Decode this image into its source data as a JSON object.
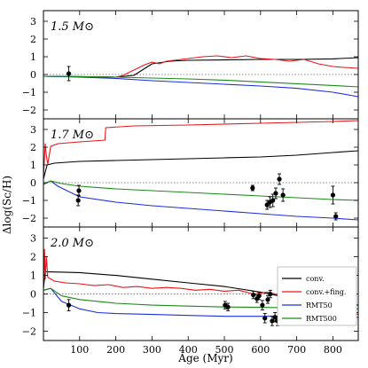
{
  "figure": {
    "ylabel": "Δlog(Sc/H)",
    "xlabel": "Age (Myr)",
    "legend": [
      "conv.",
      "conv.+fing.",
      "RMT50",
      "RMT500"
    ],
    "colors": {
      "conv.": "#000000",
      "conv.+fing.": "#e8161b",
      "RMT50": "#1d2ee0",
      "RMT500": "#1a8a1a",
      "obs": "#000000",
      "zero_line": "#666666"
    }
  },
  "chart_data": [
    {
      "type": "line",
      "panel_label": "1.5 M⊙",
      "xlim": [
        0,
        870
      ],
      "ylim": [
        -2.5,
        3.6
      ],
      "xticks": [
        100,
        200,
        300,
        400,
        500,
        600,
        700,
        800
      ],
      "yticks": [
        -2,
        -1,
        0,
        1,
        2,
        3
      ],
      "series": [
        {
          "name": "conv.",
          "x": [
            0,
            100,
            200,
            250,
            300,
            350,
            400,
            500,
            600,
            700,
            800,
            870
          ],
          "y": [
            -0.1,
            -0.12,
            -0.15,
            -0.05,
            0.6,
            0.75,
            0.8,
            0.82,
            0.85,
            0.85,
            0.88,
            0.95
          ]
        },
        {
          "name": "conv.+fing.",
          "x": [
            0,
            100,
            200,
            220,
            240,
            260,
            280,
            300,
            320,
            340,
            360,
            380,
            400,
            440,
            480,
            520,
            560,
            600,
            640,
            680,
            720,
            760,
            800,
            830,
            870
          ],
          "y": [
            -0.1,
            -0.12,
            -0.15,
            -0.05,
            0.15,
            0.35,
            0.55,
            0.7,
            0.6,
            0.75,
            0.8,
            0.85,
            0.9,
            1.0,
            1.05,
            0.95,
            1.05,
            0.9,
            0.85,
            0.75,
            0.85,
            0.6,
            0.45,
            0.4,
            0.35
          ]
        },
        {
          "name": "RMT50",
          "x": [
            0,
            100,
            200,
            300,
            400,
            500,
            600,
            700,
            800,
            870
          ],
          "y": [
            -0.1,
            -0.15,
            -0.22,
            -0.35,
            -0.45,
            -0.55,
            -0.65,
            -0.78,
            -1.0,
            -1.25
          ]
        },
        {
          "name": "RMT500",
          "x": [
            0,
            100,
            200,
            300,
            400,
            500,
            600,
            700,
            800,
            870
          ],
          "y": [
            -0.1,
            -0.12,
            -0.15,
            -0.2,
            -0.25,
            -0.32,
            -0.42,
            -0.52,
            -0.62,
            -0.7
          ]
        }
      ],
      "points": [
        {
          "x": 70,
          "y": 0.05,
          "yerr": 0.4
        }
      ]
    },
    {
      "type": "line",
      "panel_label": "1.7 M⊙",
      "xlim": [
        0,
        870
      ],
      "ylim": [
        -2.5,
        3.6
      ],
      "xticks": [
        100,
        200,
        300,
        400,
        500,
        600,
        700,
        800
      ],
      "yticks": [
        -2,
        -1,
        0,
        1,
        2,
        3
      ],
      "series": [
        {
          "name": "conv.",
          "x": [
            0,
            10,
            30,
            100,
            200,
            300,
            400,
            500,
            600,
            700,
            800,
            870
          ],
          "y": [
            0.2,
            1.0,
            1.1,
            1.2,
            1.25,
            1.3,
            1.35,
            1.4,
            1.45,
            1.55,
            1.7,
            1.8
          ]
        },
        {
          "name": "conv.+fing.",
          "x": [
            0,
            5,
            8,
            12,
            20,
            40,
            100,
            170,
            172,
            250,
            400,
            600,
            800,
            870
          ],
          "y": [
            0.3,
            2.2,
            1.5,
            1.05,
            2.05,
            2.2,
            2.3,
            2.4,
            3.1,
            3.2,
            3.25,
            3.35,
            3.45,
            3.5
          ]
        },
        {
          "name": "RMT50",
          "x": [
            0,
            20,
            40,
            100,
            200,
            300,
            400,
            500,
            600,
            700,
            800,
            870
          ],
          "y": [
            -0.1,
            0.1,
            -0.2,
            -0.8,
            -1.1,
            -1.3,
            -1.45,
            -1.6,
            -1.75,
            -1.9,
            -2.0,
            -2.1
          ]
        },
        {
          "name": "RMT500",
          "x": [
            0,
            20,
            50,
            100,
            200,
            300,
            400,
            500,
            600,
            700,
            800,
            870
          ],
          "y": [
            -0.1,
            0.1,
            -0.05,
            -0.2,
            -0.35,
            -0.45,
            -0.55,
            -0.65,
            -0.75,
            -0.85,
            -0.95,
            -1.0
          ]
        }
      ],
      "points": [
        {
          "x": 96,
          "y": -1.0,
          "yerr": 0.3
        },
        {
          "x": 98,
          "y": -0.45,
          "yerr": 0.3
        },
        {
          "x": 578,
          "y": -0.3,
          "yerr": 0.15
        },
        {
          "x": 618,
          "y": -1.25,
          "yerr": 0.25
        },
        {
          "x": 626,
          "y": -1.1,
          "yerr": 0.3
        },
        {
          "x": 634,
          "y": -1.0,
          "yerr": 0.35
        },
        {
          "x": 642,
          "y": -0.6,
          "yerr": 0.3
        },
        {
          "x": 652,
          "y": 0.2,
          "yerr": 0.3
        },
        {
          "x": 662,
          "y": -0.7,
          "yerr": 0.35
        },
        {
          "x": 800,
          "y": -0.7,
          "yerr": 0.5
        },
        {
          "x": 808,
          "y": -1.9,
          "yerr": 0.2
        }
      ]
    },
    {
      "type": "line",
      "panel_label": "2.0 M⊙",
      "xlim": [
        0,
        870
      ],
      "ylim": [
        -2.5,
        3.6
      ],
      "xticks": [
        100,
        200,
        300,
        400,
        500,
        600,
        700,
        800
      ],
      "yticks": [
        -2,
        -1,
        0,
        1,
        2,
        3
      ],
      "series": [
        {
          "name": "conv.",
          "x": [
            0,
            5,
            100,
            200,
            300,
            400,
            500,
            600,
            650,
            700,
            800,
            870
          ],
          "y": [
            0.3,
            1.2,
            1.15,
            1.0,
            0.8,
            0.6,
            0.4,
            0.1,
            -0.1,
            -0.3,
            -0.5,
            -0.6
          ]
        },
        {
          "name": "conv.+fing.",
          "x": [
            0,
            3,
            5,
            8,
            12,
            30,
            60,
            100,
            140,
            180,
            220,
            260,
            300,
            340,
            380,
            420,
            460,
            500,
            540,
            580,
            620,
            660,
            700,
            740,
            780,
            820,
            850,
            870
          ],
          "y": [
            0.3,
            2.4,
            0.8,
            2.0,
            0.9,
            0.7,
            0.6,
            0.55,
            0.45,
            0.5,
            0.35,
            0.4,
            0.3,
            0.35,
            0.3,
            0.2,
            0.25,
            0.15,
            0.2,
            0.0,
            0.1,
            -0.1,
            -0.2,
            -0.25,
            -0.55,
            -0.9,
            -1.0,
            -1.1
          ]
        },
        {
          "name": "RMT50",
          "x": [
            0,
            20,
            50,
            100,
            150,
            200,
            300,
            400,
            500,
            600,
            700,
            800,
            870
          ],
          "y": [
            0.2,
            0.3,
            -0.4,
            -0.8,
            -1.0,
            -1.05,
            -1.1,
            -1.15,
            -1.2,
            -1.2,
            -1.2,
            -1.2,
            -1.25
          ]
        },
        {
          "name": "RMT500",
          "x": [
            0,
            20,
            50,
            100,
            200,
            300,
            400,
            500,
            600,
            700,
            800,
            870
          ],
          "y": [
            0.2,
            0.3,
            -0.1,
            -0.3,
            -0.5,
            -0.6,
            -0.65,
            -0.7,
            -0.72,
            -0.75,
            -0.8,
            -0.8
          ]
        }
      ],
      "points": [
        {
          "x": 70,
          "y": -0.6,
          "yerr": 0.3
        },
        {
          "x": 502,
          "y": -0.6,
          "yerr": 0.2
        },
        {
          "x": 510,
          "y": -0.7,
          "yerr": 0.2
        },
        {
          "x": 580,
          "y": -0.05,
          "yerr": 0.2
        },
        {
          "x": 590,
          "y": -0.25,
          "yerr": 0.2
        },
        {
          "x": 596,
          "y": -0.1,
          "yerr": 0.2
        },
        {
          "x": 605,
          "y": -0.6,
          "yerr": 0.25
        },
        {
          "x": 612,
          "y": -1.3,
          "yerr": 0.25
        },
        {
          "x": 620,
          "y": -0.3,
          "yerr": 0.2
        },
        {
          "x": 627,
          "y": 0.0,
          "yerr": 0.2
        },
        {
          "x": 632,
          "y": -1.45,
          "yerr": 0.25
        },
        {
          "x": 640,
          "y": -1.25,
          "yerr": 0.25
        },
        {
          "x": 647,
          "y": -1.45,
          "yerr": 0.25
        },
        {
          "x": 800,
          "y": -0.8,
          "yerr": 0.5
        },
        {
          "x": 812,
          "y": -1.1,
          "yerr": 0.45
        },
        {
          "x": 820,
          "y": -1.2,
          "yerr": 0.4
        },
        {
          "x": 830,
          "y": -1.0,
          "yerr": 0.4
        },
        {
          "x": 842,
          "y": -1.1,
          "yerr": 0.45
        },
        {
          "x": 850,
          "y": -0.35,
          "yerr": 0.3
        }
      ]
    }
  ]
}
